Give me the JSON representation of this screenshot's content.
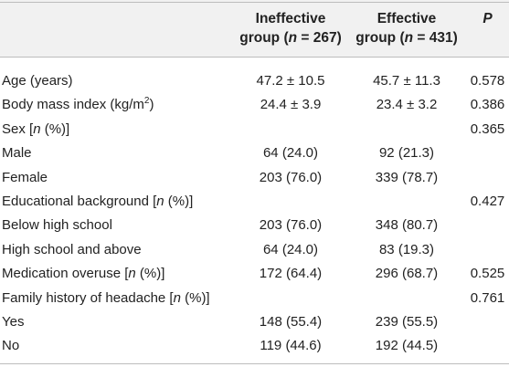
{
  "header": {
    "col1_line1": "Ineffective",
    "col1_line2_pre": "group (",
    "col1_line2_n": "n",
    "col1_line2_post": " = 267)",
    "col2_line1": "Effective",
    "col2_line2_pre": "group (",
    "col2_line2_n": "n",
    "col2_line2_post": " = 431)",
    "col3": "P"
  },
  "rows": [
    {
      "label_pre": "Age (years)",
      "c1": "47.2 ± 10.5",
      "c2": "45.7 ± 11.3",
      "c3": "0.578"
    },
    {
      "label_pre": "Body mass index (kg/m",
      "label_sup": "2",
      "label_post": ")",
      "c1": "24.4 ± 3.9",
      "c2": "23.4 ± 3.2",
      "c3": "0.386"
    },
    {
      "label_pre": "Sex [",
      "label_it": "n",
      "label_post": " (%)]",
      "c1": "",
      "c2": "",
      "c3": "0.365"
    },
    {
      "label_pre": "Male",
      "c1": "64 (24.0)",
      "c2": "92 (21.3)",
      "c3": ""
    },
    {
      "label_pre": "Female",
      "c1": "203 (76.0)",
      "c2": "339 (78.7)",
      "c3": ""
    },
    {
      "label_pre": "Educational background [",
      "label_it": "n",
      "label_post": " (%)]",
      "c1": "",
      "c2": "",
      "c3": "0.427"
    },
    {
      "label_pre": "Below high school",
      "c1": "203 (76.0)",
      "c2": "348 (80.7)",
      "c3": ""
    },
    {
      "label_pre": "High school and above",
      "c1": "64 (24.0)",
      "c2": "83 (19.3)",
      "c3": ""
    },
    {
      "label_pre": "Medication overuse [",
      "label_it": "n",
      "label_post": " (%)]",
      "c1": "172 (64.4)",
      "c2": "296 (68.7)",
      "c3": "0.525"
    },
    {
      "label_pre": "Family history of headache [",
      "label_it": "n",
      "label_post": " (%)]",
      "c1": "",
      "c2": "",
      "c3": "0.761"
    },
    {
      "label_pre": "Yes",
      "c1": "148 (55.4)",
      "c2": "239 (55.5)",
      "c3": ""
    },
    {
      "label_pre": "No",
      "c1": "119 (44.6)",
      "c2": "192 (44.5)",
      "c3": ""
    }
  ]
}
